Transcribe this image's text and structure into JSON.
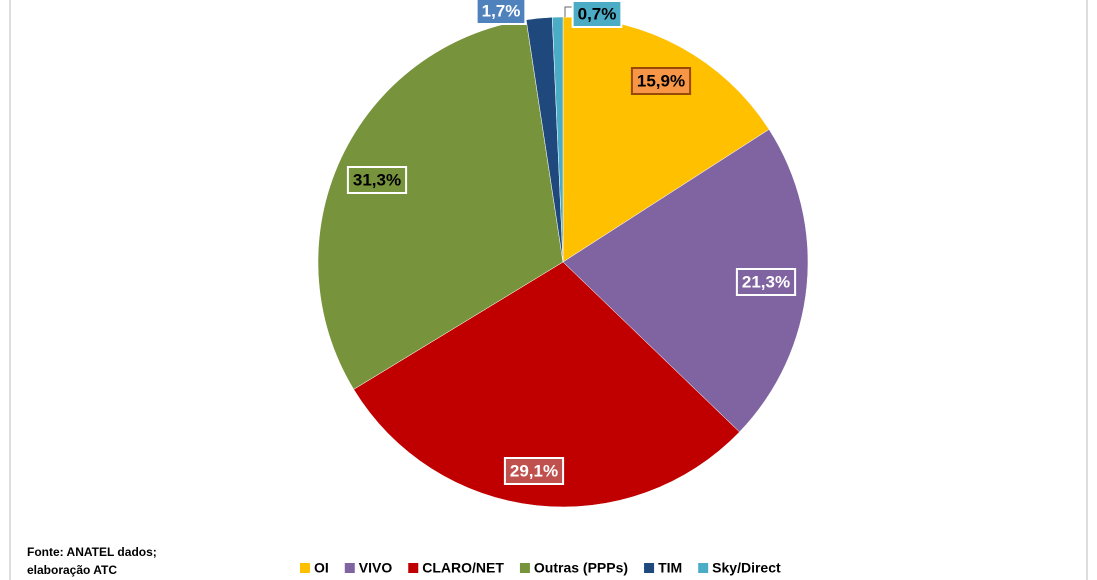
{
  "chart_data": {
    "type": "pie",
    "categories": [
      "OI",
      "VIVO",
      "CLARO/NET",
      "Outras (PPPs)",
      "TIM",
      "Sky/Direct"
    ],
    "values": [
      15.9,
      21.3,
      29.1,
      31.3,
      1.7,
      0.7
    ],
    "value_labels": [
      "15,9%",
      "21,3%",
      "29,1%",
      "31,3%",
      "1,7%",
      "0,7%"
    ],
    "colors": [
      "#FFC000",
      "#8064A2",
      "#C00000",
      "#77933C",
      "#1F497D",
      "#4BACC6"
    ],
    "legend": "bottom",
    "source": [
      "Fonte: ANATEL dados;",
      "elaboração ATC"
    ]
  }
}
